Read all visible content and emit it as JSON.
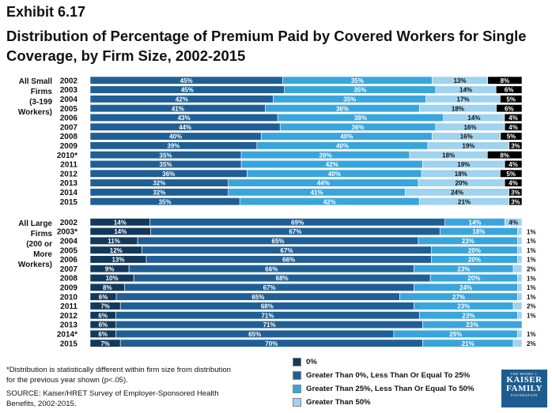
{
  "exhibit": "Exhibit 6.17",
  "title": "Distribution of Percentage of Premium Paid by Covered Workers for Single Coverage, by Firm Size, 2002-2015",
  "footnotes": {
    "significance": "*Distribution is statistically different within firm size from distribution for the previous year shown (p<.05).",
    "source": "SOURCE:  Kaiser/HRET Survey of Employer-Sponsored Health Benefits, 2002-2015."
  },
  "logo": {
    "line1": "THE HENRY J.",
    "line2": "KAISER",
    "line3": "FAMILY",
    "line4": "FOUNDATION"
  },
  "colors": {
    "zero": "#12395c",
    "le25": "#1f5f95",
    "le50": "#3aa5dc",
    "gt50": "#9fd3ef"
  },
  "chart_data": {
    "type": "bar",
    "orientation": "horizontal",
    "stacked": "100%",
    "legend_position": "bottom-center",
    "series": [
      {
        "name": "0%",
        "key": "zero"
      },
      {
        "name": "Greater Than 0%, Less Than Or Equal To 25%",
        "key": "le25"
      },
      {
        "name": "Greater Than 25%, Less Than Or Equal To 50%",
        "key": "le50"
      },
      {
        "name": "Greater Than 50%",
        "key": "gt50"
      }
    ],
    "groups": [
      {
        "label_lines": [
          "All Small",
          "Firms",
          "(3-199",
          "Workers)"
        ],
        "rows": [
          {
            "year": "2002",
            "values": [
              0,
              45,
              35,
              13,
              8
            ],
            "labels": [
              "",
              "45%",
              "35%",
              "13%",
              "8%"
            ]
          },
          {
            "year": "2003",
            "values": [
              0,
              45,
              35,
              14,
              6
            ],
            "labels": [
              "",
              "45%",
              "35%",
              "14%",
              "6%"
            ]
          },
          {
            "year": "2004",
            "values": [
              0,
              42,
              35,
              17,
              5
            ],
            "labels": [
              "",
              "42%",
              "35%",
              "17%",
              "5%"
            ]
          },
          {
            "year": "2005",
            "values": [
              0,
              41,
              36,
              18,
              6
            ],
            "labels": [
              "",
              "41%",
              "36%",
              "18%",
              "6%"
            ]
          },
          {
            "year": "2006",
            "values": [
              0,
              43,
              38,
              14,
              4
            ],
            "labels": [
              "",
              "43%",
              "38%",
              "14%",
              "4%"
            ]
          },
          {
            "year": "2007",
            "values": [
              0,
              44,
              36,
              16,
              4
            ],
            "labels": [
              "",
              "44%",
              "36%",
              "16%",
              "4%"
            ]
          },
          {
            "year": "2008",
            "values": [
              0,
              40,
              40,
              16,
              5
            ],
            "labels": [
              "",
              "40%",
              "40%",
              "16%",
              "5%"
            ]
          },
          {
            "year": "2009",
            "values": [
              0,
              39,
              40,
              19,
              3
            ],
            "labels": [
              "",
              "39%",
              "40%",
              "19%",
              "3%"
            ]
          },
          {
            "year": "2010*",
            "values": [
              0,
              35,
              39,
              18,
              8
            ],
            "labels": [
              "",
              "35%",
              "39%",
              "18%",
              "8%"
            ]
          },
          {
            "year": "2011",
            "values": [
              0,
              35,
              42,
              19,
              4
            ],
            "labels": [
              "",
              "35%",
              "42%",
              "19%",
              "4%"
            ]
          },
          {
            "year": "2012",
            "values": [
              0,
              36,
              40,
              18,
              5
            ],
            "labels": [
              "",
              "36%",
              "40%",
              "18%",
              "5%"
            ]
          },
          {
            "year": "2013",
            "values": [
              0,
              32,
              44,
              20,
              4
            ],
            "labels": [
              "",
              "32%",
              "44%",
              "20%",
              "4%"
            ]
          },
          {
            "year": "2014",
            "values": [
              0,
              32,
              41,
              24,
              3
            ],
            "labels": [
              "",
              "32%",
              "41%",
              "24%",
              "3%"
            ]
          },
          {
            "year": "2015",
            "values": [
              0,
              35,
              42,
              21,
              3
            ],
            "labels": [
              "",
              "35%",
              "42%",
              "21%",
              "3%"
            ]
          }
        ]
      },
      {
        "label_lines": [
          "All Large",
          "Firms",
          "(200 or",
          "More",
          "Workers)"
        ],
        "rows": [
          {
            "year": "2002",
            "values": [
              14,
              69,
              14,
              4
            ],
            "labels": [
              "14%",
              "69%",
              "14%",
              "4%"
            ]
          },
          {
            "year": "2003*",
            "values": [
              14,
              67,
              18,
              1
            ],
            "labels": [
              "14%",
              "67%",
              "18%",
              "1%"
            ]
          },
          {
            "year": "2004",
            "values": [
              11,
              65,
              23,
              1
            ],
            "labels": [
              "11%",
              "65%",
              "23%",
              "1%"
            ]
          },
          {
            "year": "2005",
            "values": [
              12,
              67,
              20,
              1
            ],
            "labels": [
              "12%",
              "67%",
              "20%",
              "1%"
            ]
          },
          {
            "year": "2006",
            "values": [
              13,
              66,
              20,
              1
            ],
            "labels": [
              "13%",
              "66%",
              "20%",
              "1%"
            ]
          },
          {
            "year": "2007",
            "values": [
              9,
              66,
              23,
              2
            ],
            "labels": [
              "9%",
              "66%",
              "23%",
              "2%"
            ]
          },
          {
            "year": "2008",
            "values": [
              10,
              68,
              20,
              1
            ],
            "labels": [
              "10%",
              "68%",
              "20%",
              "1%"
            ]
          },
          {
            "year": "2009",
            "values": [
              8,
              67,
              24,
              1
            ],
            "labels": [
              "8%",
              "67%",
              "24%",
              "1%"
            ]
          },
          {
            "year": "2010",
            "values": [
              6,
              65,
              27,
              1
            ],
            "labels": [
              "6%",
              "65%",
              "27%",
              "1%"
            ]
          },
          {
            "year": "2011",
            "values": [
              7,
              68,
              23,
              2
            ],
            "labels": [
              "7%",
              "68%",
              "23%",
              "2%"
            ]
          },
          {
            "year": "2012",
            "values": [
              6,
              71,
              23,
              1
            ],
            "labels": [
              "6%",
              "71%",
              "23%",
              "1%"
            ]
          },
          {
            "year": "2013",
            "values": [
              6,
              71,
              23,
              0
            ],
            "labels": [
              "6%",
              "71%",
              "23%",
              ""
            ]
          },
          {
            "year": "2014*",
            "values": [
              6,
              65,
              29,
              1
            ],
            "labels": [
              "6%",
              "65%",
              "29%",
              "1%"
            ]
          },
          {
            "year": "2015",
            "values": [
              7,
              70,
              21,
              2
            ],
            "labels": [
              "7%",
              "70%",
              "21%",
              "2%"
            ]
          }
        ]
      }
    ],
    "xlim": [
      0,
      100
    ]
  }
}
